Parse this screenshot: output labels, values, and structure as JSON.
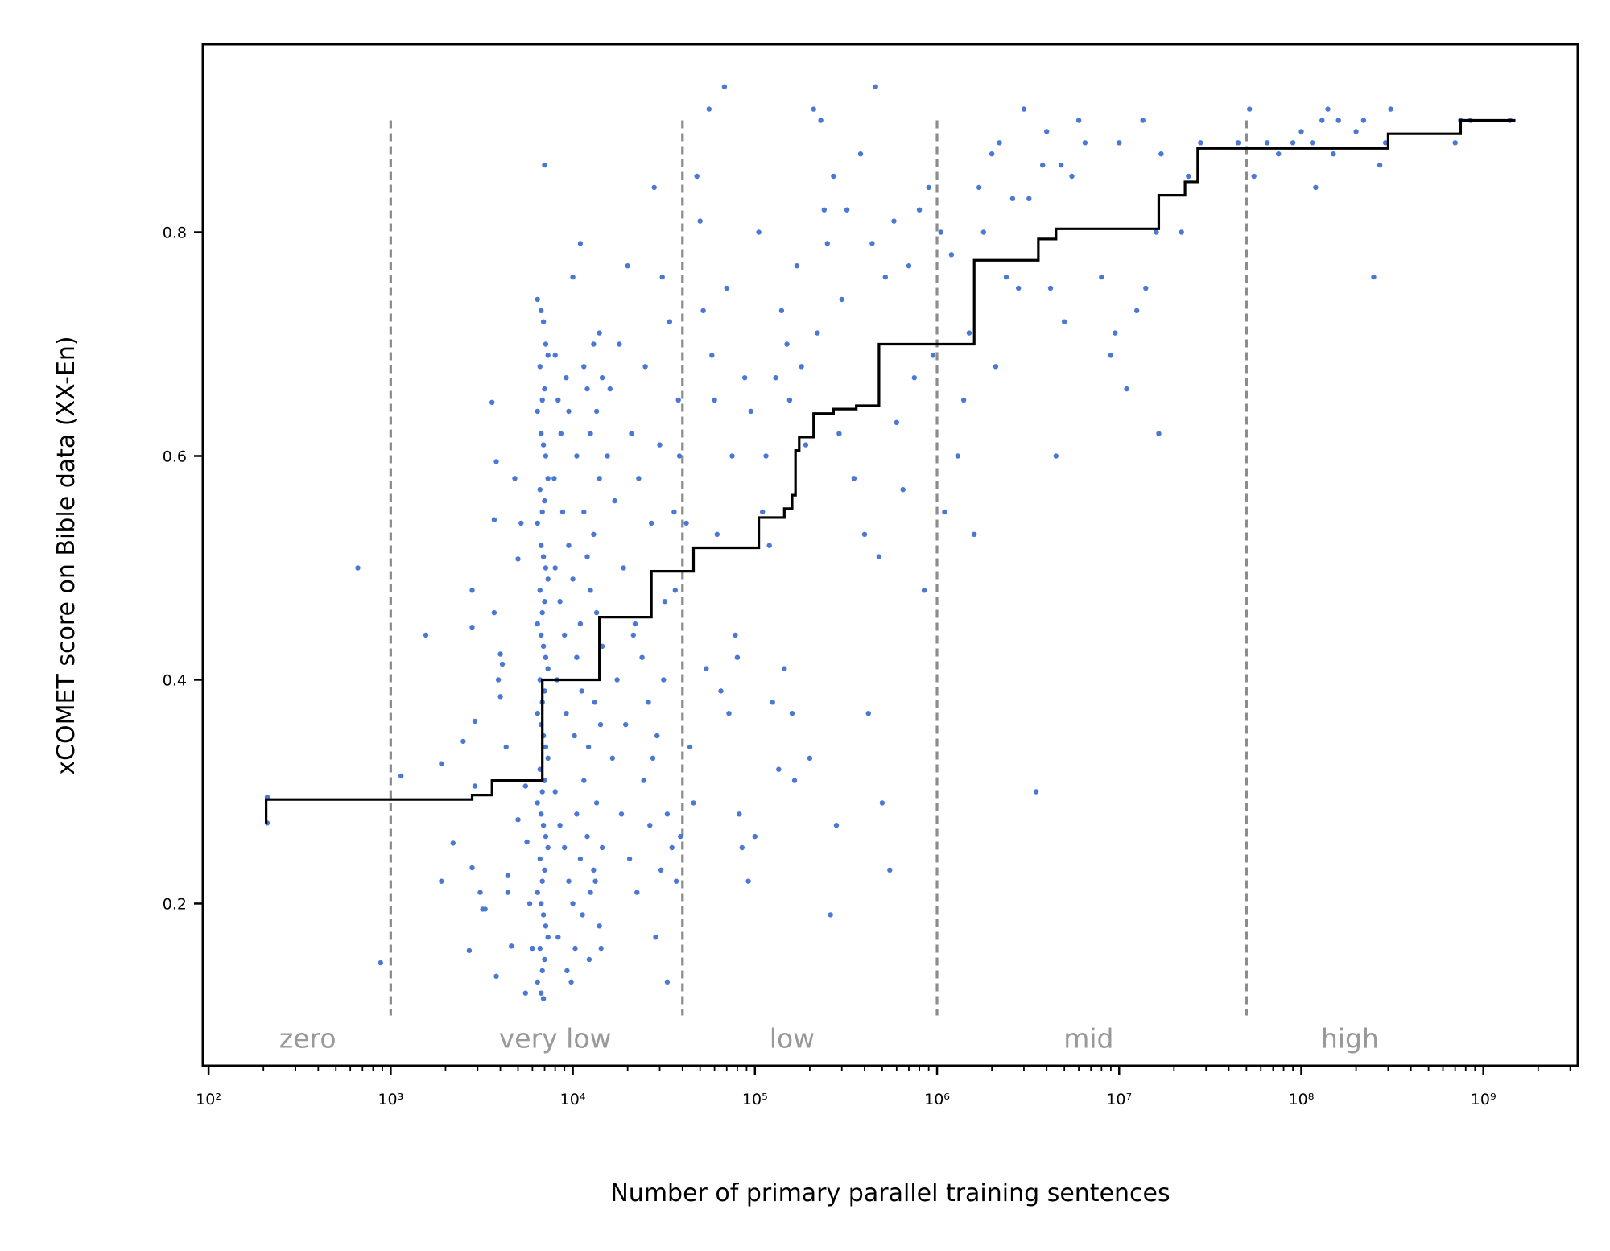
{
  "chart_data": {
    "type": "scatter",
    "title": "",
    "xlabel": "Number of primary parallel training sentences",
    "ylabel": "xCOMET score on Bible data (XX-En)",
    "x_scale": "log",
    "xlim": [
      93,
      3300000000
    ],
    "ylim": [
      0.055,
      0.968
    ],
    "grid": false,
    "x_ticks": [
      100,
      1000,
      10000,
      100000,
      1000000,
      10000000,
      100000000,
      1000000000
    ],
    "x_tick_labels": [
      "10²",
      "10³",
      "10⁴",
      "10⁵",
      "10⁶",
      "10⁷",
      "10⁸",
      "10⁹"
    ],
    "y_ticks": [
      0.2,
      0.4,
      0.6,
      0.8
    ],
    "y_tick_labels": [
      "0.2",
      "0.4",
      "0.6",
      "0.8"
    ],
    "colors": {
      "points": "#4a78d4",
      "step_line": "#000000",
      "boundaries": "#8c8c8c",
      "region_labels": "#999999"
    },
    "boundaries": {
      "x": [
        1000,
        40000,
        1000000,
        50000000
      ],
      "y_range": [
        0.1,
        0.9
      ]
    },
    "regions": [
      {
        "label": "zero",
        "x": 350
      },
      {
        "label": "very low",
        "x": 8000
      },
      {
        "label": "low",
        "x": 160000
      },
      {
        "label": "mid",
        "x": 6800000
      },
      {
        "label": "high",
        "x": 185000000
      }
    ],
    "region_label_y": 0.08,
    "step_line": {
      "end_x": 1500000000,
      "points": [
        [
          205,
          0.272
        ],
        [
          207,
          0.293
        ],
        [
          2800,
          0.297
        ],
        [
          3600,
          0.31
        ],
        [
          6800,
          0.4
        ],
        [
          14000,
          0.456
        ],
        [
          27000,
          0.497
        ],
        [
          46000,
          0.518
        ],
        [
          105000,
          0.545
        ],
        [
          145000,
          0.553
        ],
        [
          160000,
          0.565
        ],
        [
          167000,
          0.605
        ],
        [
          175000,
          0.617
        ],
        [
          210000,
          0.638
        ],
        [
          270000,
          0.642
        ],
        [
          360000,
          0.645
        ],
        [
          480000,
          0.7
        ],
        [
          1600000,
          0.775
        ],
        [
          3600000,
          0.794
        ],
        [
          4500000,
          0.803
        ],
        [
          16500000,
          0.833
        ],
        [
          23000000,
          0.845
        ],
        [
          27000000,
          0.875
        ],
        [
          300000000,
          0.888
        ],
        [
          750000000,
          0.9
        ]
      ]
    },
    "points": [
      [
        210,
        0.295
      ],
      [
        210,
        0.272
      ],
      [
        660,
        0.5
      ],
      [
        880,
        0.147
      ],
      [
        1140,
        0.314
      ],
      [
        1560,
        0.44
      ],
      [
        1900,
        0.325
      ],
      [
        1900,
        0.22
      ],
      [
        2200,
        0.254
      ],
      [
        2500,
        0.345
      ],
      [
        2800,
        0.48
      ],
      [
        2800,
        0.447
      ],
      [
        2900,
        0.363
      ],
      [
        2900,
        0.305
      ],
      [
        2800,
        0.232
      ],
      [
        2700,
        0.158
      ],
      [
        3100,
        0.21
      ],
      [
        3200,
        0.195
      ],
      [
        3300,
        0.195
      ],
      [
        3600,
        0.648
      ],
      [
        3700,
        0.543
      ],
      [
        3800,
        0.595
      ],
      [
        3700,
        0.46
      ],
      [
        3900,
        0.4
      ],
      [
        4000,
        0.423
      ],
      [
        4100,
        0.414
      ],
      [
        4000,
        0.385
      ],
      [
        4300,
        0.34
      ],
      [
        4400,
        0.21
      ],
      [
        4400,
        0.225
      ],
      [
        4600,
        0.162
      ],
      [
        3800,
        0.135
      ],
      [
        4800,
        0.58
      ],
      [
        5000,
        0.508
      ],
      [
        5200,
        0.54
      ],
      [
        5000,
        0.275
      ],
      [
        5500,
        0.305
      ],
      [
        5600,
        0.255
      ],
      [
        5800,
        0.2
      ],
      [
        6000,
        0.16
      ],
      [
        5500,
        0.12
      ],
      [
        7000,
        0.86
      ],
      [
        6400,
        0.74
      ],
      [
        6700,
        0.73
      ],
      [
        6900,
        0.72
      ],
      [
        7100,
        0.7
      ],
      [
        7300,
        0.69
      ],
      [
        6600,
        0.68
      ],
      [
        7000,
        0.66
      ],
      [
        6800,
        0.65
      ],
      [
        6400,
        0.64
      ],
      [
        6700,
        0.62
      ],
      [
        6900,
        0.61
      ],
      [
        7100,
        0.6
      ],
      [
        7300,
        0.58
      ],
      [
        6600,
        0.57
      ],
      [
        7000,
        0.56
      ],
      [
        6800,
        0.55
      ],
      [
        6400,
        0.54
      ],
      [
        6700,
        0.52
      ],
      [
        6900,
        0.51
      ],
      [
        7100,
        0.5
      ],
      [
        7300,
        0.49
      ],
      [
        6600,
        0.48
      ],
      [
        7000,
        0.47
      ],
      [
        6800,
        0.46
      ],
      [
        6400,
        0.45
      ],
      [
        6700,
        0.44
      ],
      [
        6900,
        0.43
      ],
      [
        7100,
        0.42
      ],
      [
        7300,
        0.41
      ],
      [
        6600,
        0.4
      ],
      [
        7000,
        0.39
      ],
      [
        6800,
        0.38
      ],
      [
        6400,
        0.37
      ],
      [
        6700,
        0.36
      ],
      [
        6900,
        0.35
      ],
      [
        7100,
        0.34
      ],
      [
        7300,
        0.33
      ],
      [
        6600,
        0.32
      ],
      [
        7000,
        0.31
      ],
      [
        6800,
        0.3
      ],
      [
        6400,
        0.29
      ],
      [
        6700,
        0.28
      ],
      [
        6900,
        0.27
      ],
      [
        7100,
        0.26
      ],
      [
        7300,
        0.25
      ],
      [
        6600,
        0.24
      ],
      [
        7000,
        0.23
      ],
      [
        6800,
        0.22
      ],
      [
        6400,
        0.21
      ],
      [
        6700,
        0.2
      ],
      [
        6900,
        0.19
      ],
      [
        7100,
        0.18
      ],
      [
        7300,
        0.17
      ],
      [
        6600,
        0.16
      ],
      [
        7000,
        0.15
      ],
      [
        6800,
        0.14
      ],
      [
        6400,
        0.13
      ],
      [
        6700,
        0.12
      ],
      [
        6900,
        0.115
      ],
      [
        8000,
        0.69
      ],
      [
        8300,
        0.65
      ],
      [
        8600,
        0.62
      ],
      [
        7900,
        0.58
      ],
      [
        8800,
        0.55
      ],
      [
        9200,
        0.67
      ],
      [
        9500,
        0.64
      ],
      [
        10000,
        0.76
      ],
      [
        10500,
        0.6
      ],
      [
        11000,
        0.79
      ],
      [
        11500,
        0.68
      ],
      [
        12000,
        0.66
      ],
      [
        12500,
        0.62
      ],
      [
        13000,
        0.7
      ],
      [
        13500,
        0.64
      ],
      [
        14000,
        0.71
      ],
      [
        14500,
        0.67
      ],
      [
        8000,
        0.5
      ],
      [
        8500,
        0.47
      ],
      [
        9000,
        0.44
      ],
      [
        9500,
        0.52
      ],
      [
        10000,
        0.49
      ],
      [
        10500,
        0.42
      ],
      [
        11000,
        0.45
      ],
      [
        11500,
        0.55
      ],
      [
        12000,
        0.51
      ],
      [
        12500,
        0.48
      ],
      [
        13000,
        0.53
      ],
      [
        13500,
        0.46
      ],
      [
        14000,
        0.58
      ],
      [
        14500,
        0.43
      ],
      [
        8200,
        0.4
      ],
      [
        9200,
        0.37
      ],
      [
        10200,
        0.35
      ],
      [
        11200,
        0.39
      ],
      [
        12200,
        0.34
      ],
      [
        13200,
        0.38
      ],
      [
        14200,
        0.36
      ],
      [
        8000,
        0.3
      ],
      [
        8500,
        0.27
      ],
      [
        9000,
        0.25
      ],
      [
        9500,
        0.22
      ],
      [
        10000,
        0.2
      ],
      [
        10500,
        0.28
      ],
      [
        11000,
        0.24
      ],
      [
        11500,
        0.31
      ],
      [
        12000,
        0.26
      ],
      [
        12500,
        0.21
      ],
      [
        13000,
        0.23
      ],
      [
        13500,
        0.29
      ],
      [
        14000,
        0.18
      ],
      [
        14500,
        0.25
      ],
      [
        8300,
        0.17
      ],
      [
        9300,
        0.14
      ],
      [
        10300,
        0.16
      ],
      [
        11300,
        0.19
      ],
      [
        12300,
        0.15
      ],
      [
        13300,
        0.22
      ],
      [
        14300,
        0.16
      ],
      [
        9800,
        0.13
      ],
      [
        15500,
        0.6
      ],
      [
        16000,
        0.66
      ],
      [
        17000,
        0.56
      ],
      [
        18000,
        0.7
      ],
      [
        19000,
        0.5
      ],
      [
        20000,
        0.77
      ],
      [
        21000,
        0.62
      ],
      [
        22000,
        0.45
      ],
      [
        23000,
        0.58
      ],
      [
        24000,
        0.42
      ],
      [
        25000,
        0.68
      ],
      [
        26000,
        0.38
      ],
      [
        27000,
        0.54
      ],
      [
        28000,
        0.84
      ],
      [
        29000,
        0.35
      ],
      [
        30000,
        0.61
      ],
      [
        31000,
        0.76
      ],
      [
        32000,
        0.47
      ],
      [
        33000,
        0.28
      ],
      [
        34000,
        0.72
      ],
      [
        36000,
        0.55
      ],
      [
        38000,
        0.65
      ],
      [
        16500,
        0.33
      ],
      [
        18500,
        0.28
      ],
      [
        20500,
        0.24
      ],
      [
        22500,
        0.21
      ],
      [
        24500,
        0.31
      ],
      [
        26500,
        0.27
      ],
      [
        28500,
        0.17
      ],
      [
        30500,
        0.23
      ],
      [
        33000,
        0.13
      ],
      [
        35000,
        0.25
      ],
      [
        37000,
        0.22
      ],
      [
        39000,
        0.26
      ],
      [
        17500,
        0.4
      ],
      [
        19500,
        0.36
      ],
      [
        21500,
        0.44
      ],
      [
        27500,
        0.33
      ],
      [
        31500,
        0.4
      ],
      [
        36500,
        0.48
      ],
      [
        38500,
        0.6
      ],
      [
        42000,
        0.54
      ],
      [
        44000,
        0.34
      ],
      [
        46000,
        0.29
      ],
      [
        48000,
        0.85
      ],
      [
        50000,
        0.81
      ],
      [
        52000,
        0.73
      ],
      [
        54000,
        0.41
      ],
      [
        56000,
        0.91
      ],
      [
        58000,
        0.69
      ],
      [
        60000,
        0.65
      ],
      [
        62000,
        0.53
      ],
      [
        65000,
        0.39
      ],
      [
        68000,
        0.93
      ],
      [
        70000,
        0.75
      ],
      [
        72000,
        0.37
      ],
      [
        75000,
        0.6
      ],
      [
        78000,
        0.44
      ],
      [
        80000,
        0.42
      ],
      [
        82000,
        0.28
      ],
      [
        85000,
        0.25
      ],
      [
        88000,
        0.67
      ],
      [
        92000,
        0.22
      ],
      [
        95000,
        0.64
      ],
      [
        100000,
        0.26
      ],
      [
        105000,
        0.8
      ],
      [
        110000,
        0.55
      ],
      [
        115000,
        0.6
      ],
      [
        120000,
        0.52
      ],
      [
        125000,
        0.38
      ],
      [
        130000,
        0.67
      ],
      [
        135000,
        0.32
      ],
      [
        140000,
        0.73
      ],
      [
        145000,
        0.41
      ],
      [
        150000,
        0.7
      ],
      [
        155000,
        0.65
      ],
      [
        160000,
        0.37
      ],
      [
        165000,
        0.31
      ],
      [
        170000,
        0.77
      ],
      [
        180000,
        0.68
      ],
      [
        190000,
        0.61
      ],
      [
        200000,
        0.33
      ],
      [
        210000,
        0.91
      ],
      [
        220000,
        0.71
      ],
      [
        230000,
        0.9
      ],
      [
        240000,
        0.82
      ],
      [
        250000,
        0.79
      ],
      [
        260000,
        0.19
      ],
      [
        270000,
        0.85
      ],
      [
        280000,
        0.27
      ],
      [
        290000,
        0.62
      ],
      [
        300000,
        0.74
      ],
      [
        320000,
        0.82
      ],
      [
        350000,
        0.58
      ],
      [
        380000,
        0.87
      ],
      [
        400000,
        0.53
      ],
      [
        420000,
        0.37
      ],
      [
        440000,
        0.79
      ],
      [
        460000,
        0.93
      ],
      [
        480000,
        0.51
      ],
      [
        500000,
        0.29
      ],
      [
        520000,
        0.76
      ],
      [
        550000,
        0.23
      ],
      [
        580000,
        0.81
      ],
      [
        600000,
        0.63
      ],
      [
        650000,
        0.57
      ],
      [
        700000,
        0.77
      ],
      [
        750000,
        0.67
      ],
      [
        800000,
        0.82
      ],
      [
        850000,
        0.48
      ],
      [
        900000,
        0.84
      ],
      [
        950000,
        0.69
      ],
      [
        1050000,
        0.8
      ],
      [
        1100000,
        0.55
      ],
      [
        1200000,
        0.78
      ],
      [
        1300000,
        0.6
      ],
      [
        1400000,
        0.65
      ],
      [
        1500000,
        0.71
      ],
      [
        1600000,
        0.53
      ],
      [
        1700000,
        0.84
      ],
      [
        1800000,
        0.8
      ],
      [
        2000000,
        0.87
      ],
      [
        2100000,
        0.68
      ],
      [
        2200000,
        0.88
      ],
      [
        2400000,
        0.76
      ],
      [
        2600000,
        0.83
      ],
      [
        2800000,
        0.75
      ],
      [
        3000000,
        0.91
      ],
      [
        3200000,
        0.83
      ],
      [
        3500000,
        0.3
      ],
      [
        3800000,
        0.86
      ],
      [
        4000000,
        0.89
      ],
      [
        4200000,
        0.75
      ],
      [
        4500000,
        0.6
      ],
      [
        4800000,
        0.86
      ],
      [
        5000000,
        0.72
      ],
      [
        5500000,
        0.85
      ],
      [
        6000000,
        0.9
      ],
      [
        6500000,
        0.88
      ],
      [
        8000000,
        0.76
      ],
      [
        9000000,
        0.69
      ],
      [
        9500000,
        0.71
      ],
      [
        10000000,
        0.88
      ],
      [
        11000000,
        0.66
      ],
      [
        12500000,
        0.73
      ],
      [
        13500000,
        0.9
      ],
      [
        14000000,
        0.75
      ],
      [
        16000000,
        0.8
      ],
      [
        16500000,
        0.62
      ],
      [
        17000000,
        0.87
      ],
      [
        22000000,
        0.8
      ],
      [
        24000000,
        0.85
      ],
      [
        28000000,
        0.88
      ],
      [
        45000000,
        0.88
      ],
      [
        52000000,
        0.91
      ],
      [
        55000000,
        0.85
      ],
      [
        65000000,
        0.88
      ],
      [
        75000000,
        0.87
      ],
      [
        90000000,
        0.88
      ],
      [
        100000000,
        0.89
      ],
      [
        115000000,
        0.88
      ],
      [
        120000000,
        0.84
      ],
      [
        130000000,
        0.9
      ],
      [
        140000000,
        0.91
      ],
      [
        150000000,
        0.87
      ],
      [
        160000000,
        0.9
      ],
      [
        200000000,
        0.89
      ],
      [
        220000000,
        0.9
      ],
      [
        250000000,
        0.76
      ],
      [
        270000000,
        0.86
      ],
      [
        290000000,
        0.88
      ],
      [
        310000000,
        0.91
      ],
      [
        700000000,
        0.88
      ],
      [
        750000000,
        0.9
      ],
      [
        850000000,
        0.9
      ],
      [
        1400000000,
        0.9
      ]
    ]
  }
}
